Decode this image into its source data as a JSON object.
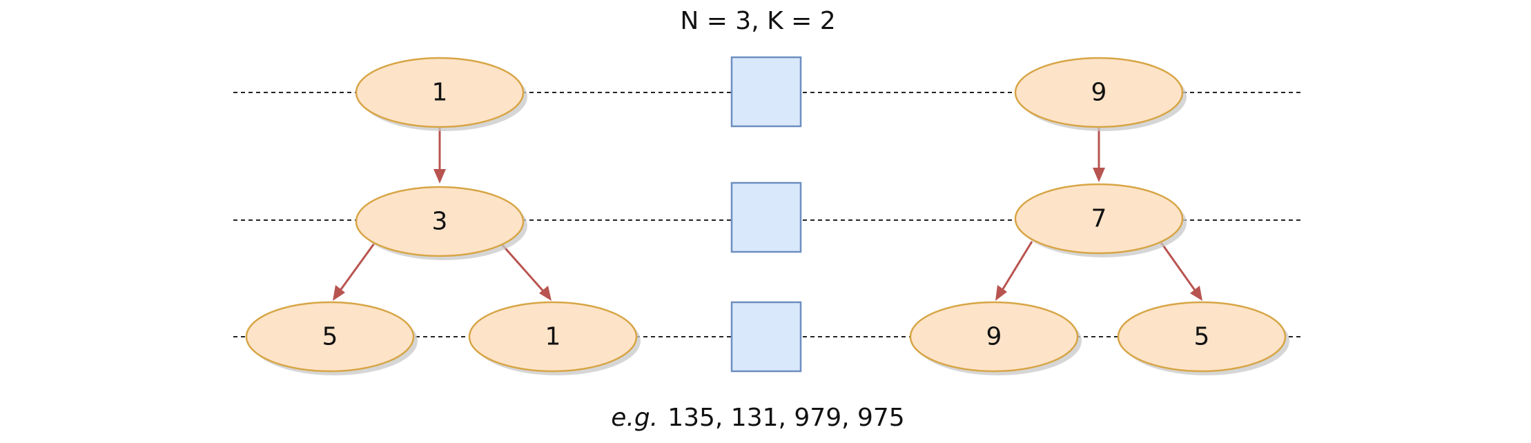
{
  "title": "N = 3, K = 2",
  "caption": {
    "prefix": "e.g.",
    "text": "135, 131, 979, 975"
  },
  "colors": {
    "node_fill": "#fde3c8",
    "node_stroke": "#d7a545",
    "slot_fill": "#dae8fc",
    "slot_stroke": "#6c8ebf",
    "edge": "#b85450",
    "guide": "#222222"
  },
  "trees": [
    {
      "root": "1",
      "level2": "3",
      "leaves": [
        "5",
        "1"
      ]
    },
    {
      "root": "9",
      "level2": "7",
      "leaves": [
        "9",
        "5"
      ]
    }
  ],
  "slots": 3
}
